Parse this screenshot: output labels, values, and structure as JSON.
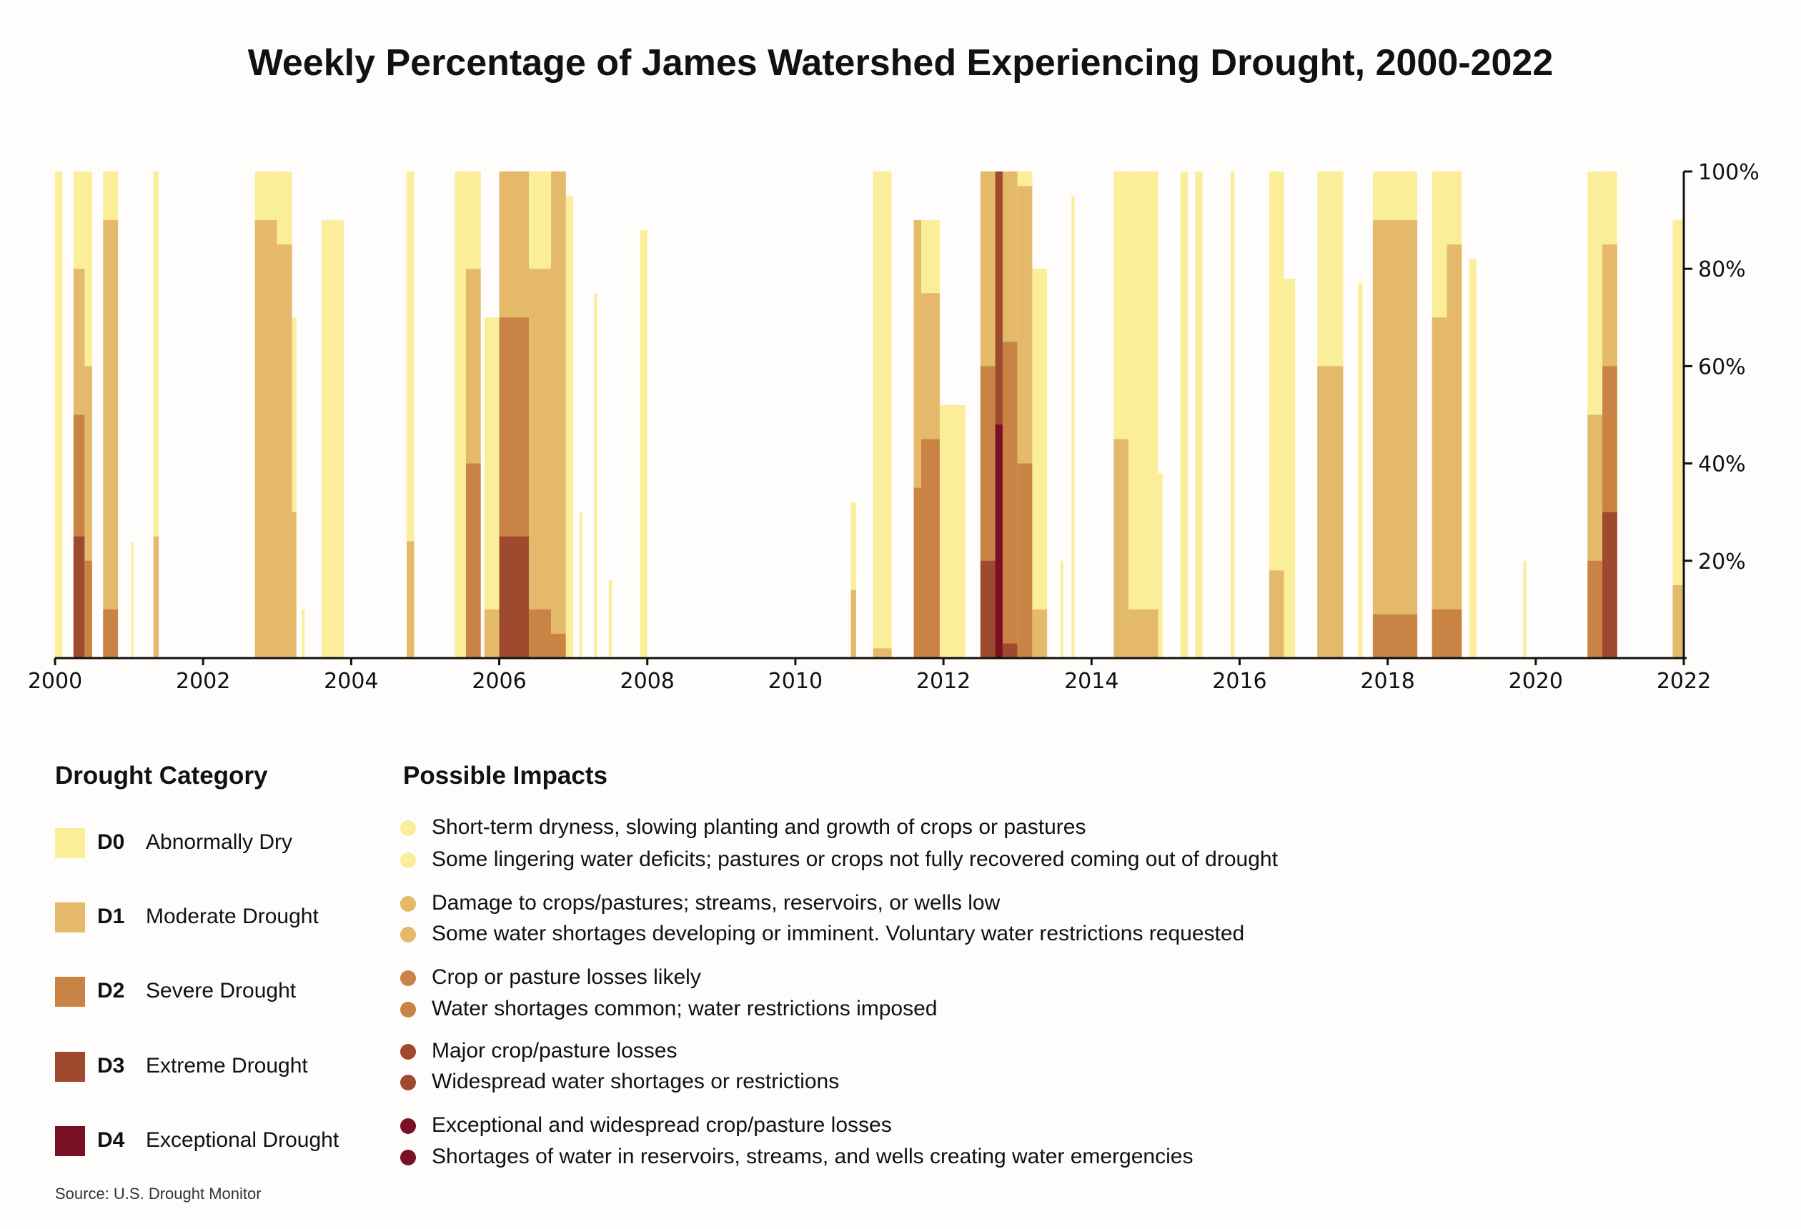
{
  "chart_data": {
    "type": "area",
    "title": "Weekly Percentage of James Watershed Experiencing Drought, 2000-2022",
    "xlabel": "",
    "ylabel": "",
    "xlim": [
      2000,
      2022
    ],
    "ylim": [
      0,
      100
    ],
    "x_ticks": [
      "2000",
      "2002",
      "2004",
      "2006",
      "2008",
      "2010",
      "2012",
      "2014",
      "2016",
      "2018",
      "2020",
      "2022"
    ],
    "y_ticks": [
      "20%",
      "40%",
      "60%",
      "80%",
      "100%"
    ],
    "series_names": [
      "D0",
      "D1",
      "D2",
      "D3",
      "D4"
    ],
    "colors": {
      "D0": "#fbee9a",
      "D1": "#e4b96a",
      "D2": "#c98345",
      "D3": "#9e4a2f",
      "D4": "#7a1024"
    },
    "episodes": [
      [
        2000.0,
        2000.1,
        100,
        0,
        0,
        0,
        0
      ],
      [
        2000.25,
        2000.4,
        100,
        80,
        50,
        25,
        0
      ],
      [
        2000.4,
        2000.5,
        100,
        60,
        20,
        0,
        0
      ],
      [
        2000.65,
        2000.85,
        100,
        90,
        10,
        0,
        0
      ],
      [
        2001.03,
        2001.06,
        24,
        0,
        0,
        0,
        0
      ],
      [
        2001.33,
        2001.4,
        100,
        25,
        0,
        0,
        0
      ],
      [
        2002.7,
        2003.0,
        100,
        90,
        0,
        0,
        0
      ],
      [
        2003.0,
        2003.2,
        100,
        85,
        0,
        0,
        0
      ],
      [
        2003.2,
        2003.26,
        70,
        30,
        0,
        0,
        0
      ],
      [
        2003.33,
        2003.37,
        10,
        0,
        0,
        0,
        0
      ],
      [
        2003.6,
        2003.9,
        90,
        0,
        0,
        0,
        0
      ],
      [
        2004.75,
        2004.85,
        100,
        24,
        0,
        0,
        0
      ],
      [
        2005.4,
        2005.55,
        100,
        0,
        0,
        0,
        0
      ],
      [
        2005.55,
        2005.75,
        100,
        80,
        40,
        0,
        0
      ],
      [
        2005.8,
        2006.0,
        70,
        10,
        0,
        0,
        0
      ],
      [
        2006.0,
        2006.4,
        100,
        100,
        70,
        25,
        0
      ],
      [
        2006.4,
        2006.7,
        100,
        80,
        10,
        0,
        0
      ],
      [
        2006.7,
        2006.9,
        100,
        100,
        5,
        0,
        0
      ],
      [
        2006.9,
        2007.0,
        95,
        0,
        0,
        0,
        0
      ],
      [
        2007.08,
        2007.12,
        30,
        0,
        0,
        0,
        0
      ],
      [
        2007.28,
        2007.32,
        75,
        0,
        0,
        0,
        0
      ],
      [
        2007.48,
        2007.52,
        16,
        0,
        0,
        0,
        0
      ],
      [
        2007.9,
        2008.0,
        88,
        0,
        0,
        0,
        0
      ],
      [
        2010.75,
        2010.82,
        32,
        14,
        0,
        0,
        0
      ],
      [
        2011.05,
        2011.3,
        100,
        2,
        0,
        0,
        0
      ],
      [
        2011.6,
        2011.7,
        90,
        90,
        35,
        0,
        0
      ],
      [
        2011.7,
        2011.95,
        90,
        75,
        45,
        0,
        0
      ],
      [
        2011.95,
        2012.3,
        52,
        0,
        0,
        0,
        0
      ],
      [
        2012.5,
        2012.7,
        100,
        100,
        60,
        20,
        0
      ],
      [
        2012.7,
        2012.8,
        100,
        100,
        100,
        100,
        48
      ],
      [
        2012.8,
        2013.0,
        100,
        100,
        65,
        3,
        0
      ],
      [
        2013.0,
        2013.2,
        100,
        97,
        40,
        0,
        0
      ],
      [
        2013.2,
        2013.4,
        80,
        10,
        0,
        0,
        0
      ],
      [
        2013.58,
        2013.62,
        20,
        0,
        0,
        0,
        0
      ],
      [
        2013.73,
        2013.77,
        95,
        0,
        0,
        0,
        0
      ],
      [
        2014.3,
        2014.5,
        100,
        45,
        0,
        0,
        0
      ],
      [
        2014.5,
        2014.9,
        100,
        10,
        0,
        0,
        0
      ],
      [
        2014.9,
        2014.96,
        38,
        0,
        0,
        0,
        0
      ],
      [
        2015.2,
        2015.3,
        100,
        0,
        0,
        0,
        0
      ],
      [
        2015.4,
        2015.5,
        100,
        0,
        0,
        0,
        0
      ],
      [
        2015.88,
        2015.93,
        100,
        0,
        0,
        0,
        0
      ],
      [
        2016.4,
        2016.6,
        100,
        18,
        0,
        0,
        0
      ],
      [
        2016.6,
        2016.75,
        78,
        0,
        0,
        0,
        0
      ],
      [
        2017.05,
        2017.4,
        100,
        60,
        0,
        0,
        0
      ],
      [
        2017.6,
        2017.66,
        77,
        0,
        0,
        0,
        0
      ],
      [
        2017.8,
        2018.4,
        100,
        90,
        9,
        0,
        0
      ],
      [
        2018.6,
        2018.8,
        100,
        70,
        10,
        0,
        0
      ],
      [
        2018.8,
        2019.0,
        100,
        85,
        10,
        0,
        0
      ],
      [
        2019.1,
        2019.2,
        82,
        0,
        0,
        0,
        0
      ],
      [
        2019.83,
        2019.87,
        20,
        0,
        0,
        0,
        0
      ],
      [
        2020.7,
        2020.9,
        100,
        50,
        20,
        0,
        0
      ],
      [
        2020.9,
        2021.1,
        100,
        85,
        60,
        30,
        0
      ],
      [
        2021.85,
        2022.0,
        90,
        15,
        0,
        0,
        0
      ]
    ]
  },
  "legend": {
    "category_heading": "Drought Category",
    "impacts_heading": "Possible Impacts",
    "categories": [
      {
        "code": "D0",
        "name": "Abnormally Dry",
        "color": "#fbee9a",
        "impacts": [
          "Short-term dryness, slowing planting and growth of crops or pastures",
          "Some lingering water deficits; pastures or crops not fully recovered coming out of drought"
        ]
      },
      {
        "code": "D1",
        "name": "Moderate Drought",
        "color": "#e4b96a",
        "impacts": [
          "Damage to crops/pastures; streams, reservoirs, or wells low",
          "Some water shortages developing or imminent. Voluntary water restrictions requested"
        ]
      },
      {
        "code": "D2",
        "name": "Severe Drought",
        "color": "#c98345",
        "impacts": [
          "Crop or pasture losses likely",
          "Water shortages common; water restrictions imposed"
        ]
      },
      {
        "code": "D3",
        "name": "Extreme Drought",
        "color": "#9e4a2f",
        "impacts": [
          "Major crop/pasture losses",
          "Widespread water shortages or restrictions"
        ]
      },
      {
        "code": "D4",
        "name": "Exceptional Drought",
        "color": "#7a1024",
        "impacts": [
          "Exceptional and widespread crop/pasture losses",
          "Shortages of water in reservoirs, streams, and wells creating water emergencies"
        ]
      }
    ]
  },
  "source": "Source: U.S. Drought Monitor"
}
